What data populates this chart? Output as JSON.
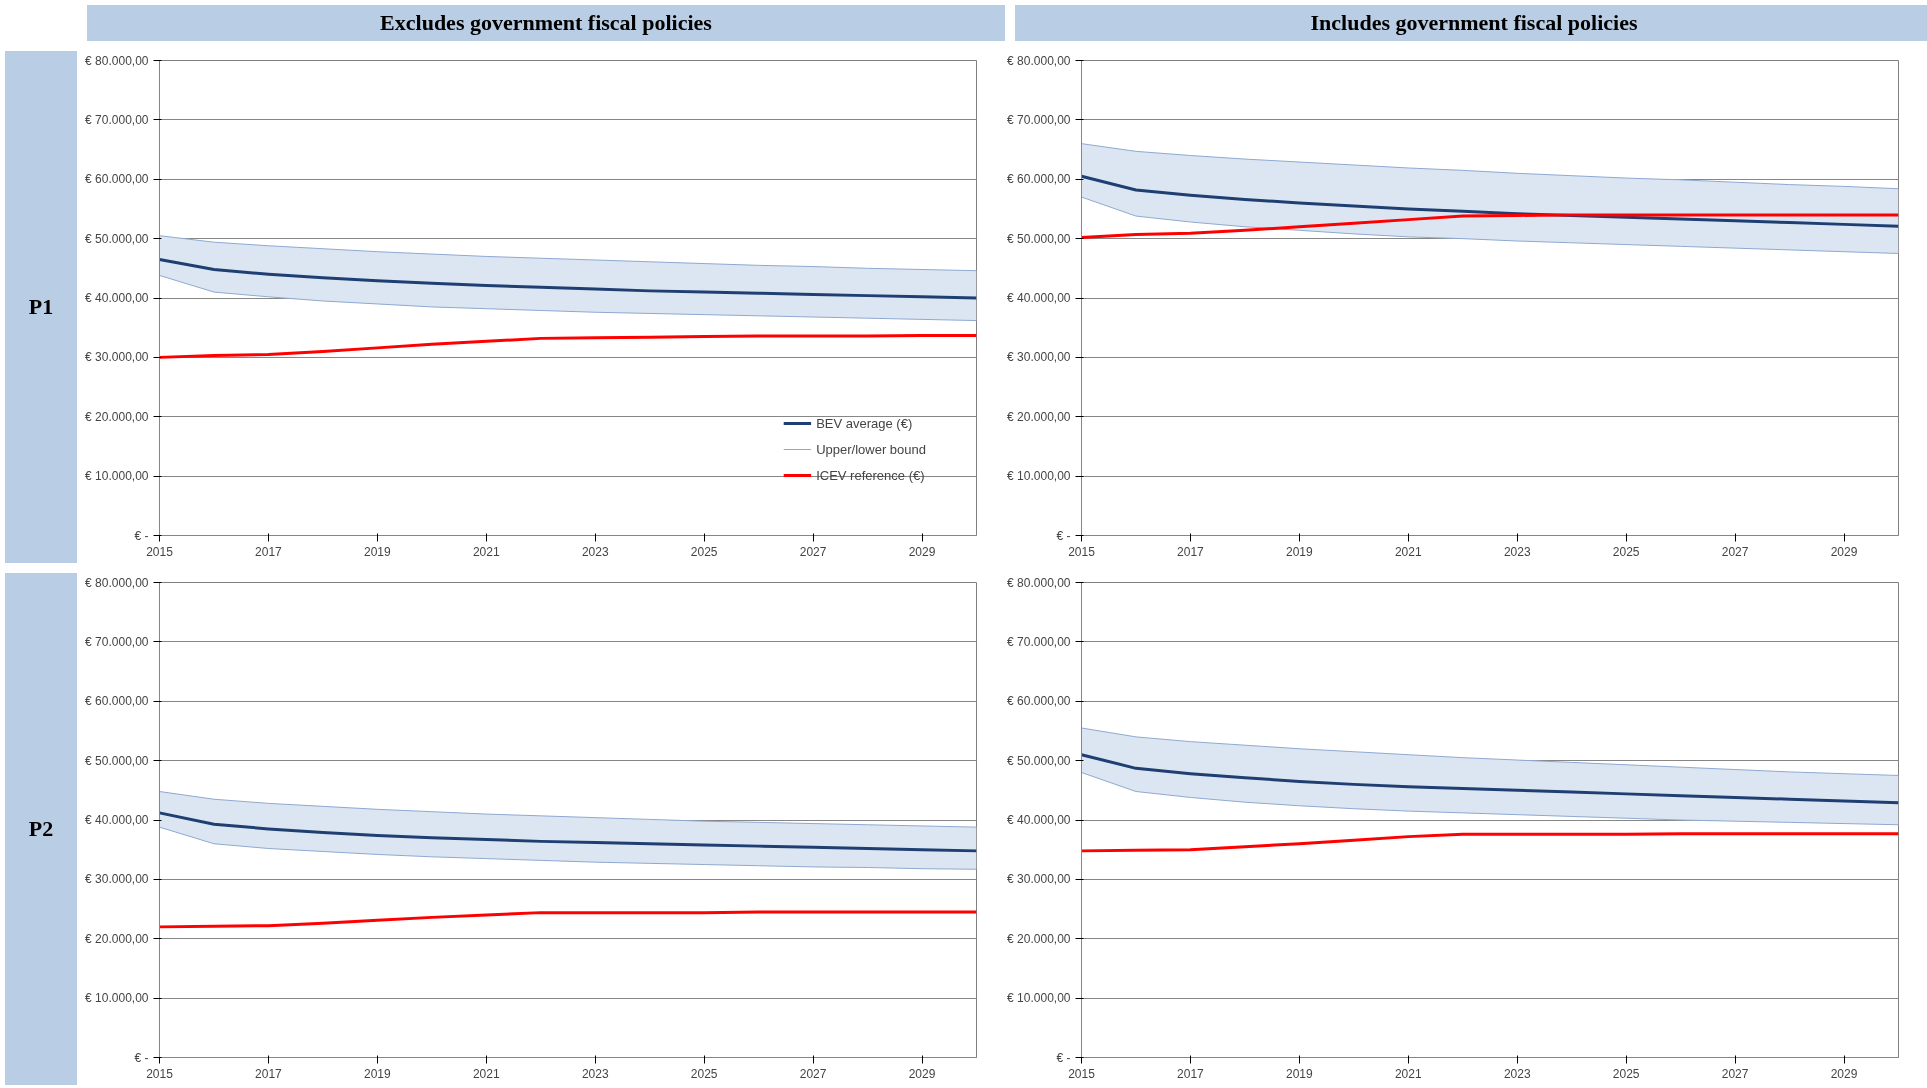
{
  "chart_data": [
    {
      "type": "line",
      "title": "Excludes government fiscal policies",
      "annotations": [
        "P1"
      ],
      "x": [
        2015,
        2016,
        2017,
        2018,
        2019,
        2020,
        2021,
        2022,
        2023,
        2024,
        2025,
        2026,
        2027,
        2028,
        2029,
        2030
      ],
      "xlim": [
        2015,
        2030
      ],
      "xticks": [
        2015,
        2017,
        2019,
        2021,
        2023,
        2025,
        2027,
        2029
      ],
      "ylim": [
        0,
        80000
      ],
      "yticks": [
        {
          "value": 0,
          "label": "€ -"
        },
        {
          "value": 10000,
          "label": "€ 10.000,00"
        },
        {
          "value": 20000,
          "label": "€ 20.000,00"
        },
        {
          "value": 30000,
          "label": "€ 30.000,00"
        },
        {
          "value": 40000,
          "label": "€ 40.000,00"
        },
        {
          "value": 50000,
          "label": "€ 50.000,00"
        },
        {
          "value": 60000,
          "label": "€ 60.000,00"
        },
        {
          "value": 70000,
          "label": "€ 70.000,00"
        },
        {
          "value": 80000,
          "label": "€ 80.000,00"
        }
      ],
      "grid": "y",
      "legend": "bottom right",
      "series": [
        {
          "name": "BEV average (€)",
          "color": "#1f3f73",
          "values": [
            46500,
            44800,
            44000,
            43400,
            42900,
            42500,
            42100,
            41800,
            41500,
            41200,
            41000,
            40800,
            40600,
            40400,
            40200,
            40000
          ],
          "lower": [
            43800,
            41000,
            40200,
            39500,
            39000,
            38500,
            38200,
            37900,
            37600,
            37400,
            37200,
            37000,
            36800,
            36600,
            36400,
            36200
          ],
          "upper": [
            50500,
            49400,
            48800,
            48300,
            47800,
            47400,
            47000,
            46700,
            46400,
            46100,
            45800,
            45500,
            45300,
            45000,
            44800,
            44600
          ]
        },
        {
          "name": "Upper/lower bound",
          "color": "#8ea9d0",
          "values": [
            50500,
            49400,
            48800,
            48300,
            47800,
            47400,
            47000,
            46700,
            46400,
            46100,
            45800,
            45500,
            45300,
            45000,
            44800,
            44600
          ]
        },
        {
          "color": "#8ea9d0",
          "values": [
            43800,
            41000,
            40200,
            39500,
            39000,
            38500,
            38200,
            37900,
            37600,
            37400,
            37200,
            37000,
            36800,
            36600,
            36400,
            36200
          ]
        },
        {
          "name": "ICEV reference (€)",
          "color": "#ff0000",
          "values": [
            30000,
            30300,
            30500,
            31000,
            31600,
            32200,
            32700,
            33200,
            33300,
            33400,
            33500,
            33600,
            33600,
            33600,
            33700,
            33700
          ]
        }
      ]
    },
    {
      "type": "line",
      "title": "Includes government fiscal policies",
      "x": [
        2015,
        2016,
        2017,
        2018,
        2019,
        2020,
        2021,
        2022,
        2023,
        2024,
        2025,
        2026,
        2027,
        2028,
        2029,
        2030
      ],
      "xlim": [
        2015,
        2030
      ],
      "xticks": [
        2015,
        2017,
        2019,
        2021,
        2023,
        2025,
        2027,
        2029
      ],
      "ylim": [
        0,
        80000
      ],
      "yticks": [
        {
          "value": 0,
          "label": "€ -"
        },
        {
          "value": 10000,
          "label": "€ 10.000,00"
        },
        {
          "value": 20000,
          "label": "€ 20.000,00"
        },
        {
          "value": 30000,
          "label": "€ 30.000,00"
        },
        {
          "value": 40000,
          "label": "€ 40.000,00"
        },
        {
          "value": 50000,
          "label": "€ 50.000,00"
        },
        {
          "value": 60000,
          "label": "€ 60.000,00"
        },
        {
          "value": 70000,
          "label": "€ 70.000,00"
        },
        {
          "value": 80000,
          "label": "€ 80.000,00"
        }
      ],
      "grid": "y",
      "series": [
        {
          "color": "#1f3f73",
          "values": [
            60500,
            58200,
            57300,
            56600,
            56000,
            55500,
            55000,
            54600,
            54200,
            53900,
            53600,
            53300,
            53000,
            52700,
            52400,
            52100
          ],
          "lower": [
            57000,
            53800,
            52800,
            52000,
            51400,
            50800,
            50300,
            50000,
            49600,
            49300,
            49000,
            48700,
            48400,
            48100,
            47800,
            47500
          ],
          "upper": [
            66000,
            64700,
            64000,
            63400,
            62900,
            62400,
            61900,
            61500,
            61000,
            60600,
            60200,
            59900,
            59500,
            59100,
            58800,
            58400
          ]
        },
        {
          "color": "#8ea9d0",
          "values": [
            66000,
            64700,
            64000,
            63400,
            62900,
            62400,
            61900,
            61500,
            61000,
            60600,
            60200,
            59900,
            59500,
            59100,
            58800,
            58400
          ]
        },
        {
          "color": "#8ea9d0",
          "values": [
            57000,
            53800,
            52800,
            52000,
            51400,
            50800,
            50300,
            50000,
            49600,
            49300,
            49000,
            48700,
            48400,
            48100,
            47800,
            47500
          ]
        },
        {
          "color": "#ff0000",
          "values": [
            50200,
            50700,
            50900,
            51400,
            52000,
            52600,
            53200,
            53800,
            53900,
            54000,
            54000,
            54000,
            54000,
            54000,
            54000,
            54000
          ]
        }
      ]
    },
    {
      "type": "line",
      "annotations": [
        "P2"
      ],
      "x": [
        2015,
        2016,
        2017,
        2018,
        2019,
        2020,
        2021,
        2022,
        2023,
        2024,
        2025,
        2026,
        2027,
        2028,
        2029,
        2030
      ],
      "xlim": [
        2015,
        2030
      ],
      "xticks": [
        2015,
        2017,
        2019,
        2021,
        2023,
        2025,
        2027,
        2029
      ],
      "ylim": [
        0,
        80000
      ],
      "yticks": [
        {
          "value": 0,
          "label": "€ -"
        },
        {
          "value": 10000,
          "label": "€ 10.000,00"
        },
        {
          "value": 20000,
          "label": "€ 20.000,00"
        },
        {
          "value": 30000,
          "label": "€ 30.000,00"
        },
        {
          "value": 40000,
          "label": "€ 40.000,00"
        },
        {
          "value": 50000,
          "label": "€ 50.000,00"
        },
        {
          "value": 60000,
          "label": "€ 60.000,00"
        },
        {
          "value": 70000,
          "label": "€ 70.000,00"
        },
        {
          "value": 80000,
          "label": "€ 80.000,00"
        }
      ],
      "grid": "y",
      "series": [
        {
          "color": "#1f3f73",
          "values": [
            41200,
            39300,
            38500,
            37900,
            37400,
            37000,
            36700,
            36400,
            36200,
            36000,
            35800,
            35600,
            35400,
            35200,
            35000,
            34800
          ],
          "lower": [
            38800,
            36000,
            35200,
            34700,
            34200,
            33800,
            33500,
            33200,
            32900,
            32700,
            32500,
            32300,
            32100,
            32000,
            31800,
            31700
          ],
          "upper": [
            44800,
            43500,
            42800,
            42300,
            41800,
            41400,
            41000,
            40700,
            40400,
            40100,
            39800,
            39600,
            39400,
            39200,
            39000,
            38800
          ]
        },
        {
          "color": "#8ea9d0",
          "values": [
            44800,
            43500,
            42800,
            42300,
            41800,
            41400,
            41000,
            40700,
            40400,
            40100,
            39800,
            39600,
            39400,
            39200,
            39000,
            38800
          ]
        },
        {
          "color": "#8ea9d0",
          "values": [
            38800,
            36000,
            35200,
            34700,
            34200,
            33800,
            33500,
            33200,
            32900,
            32700,
            32500,
            32300,
            32100,
            32000,
            31800,
            31700
          ]
        },
        {
          "color": "#ff0000",
          "values": [
            22000,
            22100,
            22200,
            22600,
            23100,
            23600,
            24000,
            24400,
            24400,
            24400,
            24400,
            24500,
            24500,
            24500,
            24500,
            24500
          ]
        }
      ]
    },
    {
      "type": "line",
      "x": [
        2015,
        2016,
        2017,
        2018,
        2019,
        2020,
        2021,
        2022,
        2023,
        2024,
        2025,
        2026,
        2027,
        2028,
        2029,
        2030
      ],
      "xlim": [
        2015,
        2030
      ],
      "xticks": [
        2015,
        2017,
        2019,
        2021,
        2023,
        2025,
        2027,
        2029
      ],
      "ylim": [
        0,
        80000
      ],
      "yticks": [
        {
          "value": 0,
          "label": "€ -"
        },
        {
          "value": 10000,
          "label": "€ 10.000,00"
        },
        {
          "value": 20000,
          "label": "€ 20.000,00"
        },
        {
          "value": 30000,
          "label": "€ 30.000,00"
        },
        {
          "value": 40000,
          "label": "€ 40.000,00"
        },
        {
          "value": 50000,
          "label": "€ 50.000,00"
        },
        {
          "value": 60000,
          "label": "€ 60.000,00"
        },
        {
          "value": 70000,
          "label": "€ 70.000,00"
        },
        {
          "value": 80000,
          "label": "€ 80.000,00"
        }
      ],
      "grid": "y",
      "series": [
        {
          "color": "#1f3f73",
          "values": [
            51000,
            48700,
            47800,
            47100,
            46500,
            46000,
            45600,
            45300,
            45000,
            44700,
            44400,
            44100,
            43800,
            43500,
            43200,
            42900
          ],
          "lower": [
            48000,
            44800,
            43800,
            43000,
            42400,
            41900,
            41500,
            41200,
            40900,
            40600,
            40300,
            40000,
            39800,
            39600,
            39400,
            39200
          ],
          "upper": [
            55500,
            54000,
            53200,
            52600,
            52000,
            51500,
            51000,
            50500,
            50100,
            49700,
            49300,
            48900,
            48500,
            48100,
            47800,
            47500
          ]
        },
        {
          "color": "#8ea9d0",
          "values": [
            55500,
            54000,
            53200,
            52600,
            52000,
            51500,
            51000,
            50500,
            50100,
            49700,
            49300,
            48900,
            48500,
            48100,
            47800,
            47500
          ]
        },
        {
          "color": "#8ea9d0",
          "values": [
            48000,
            44800,
            43800,
            43000,
            42400,
            41900,
            41500,
            41200,
            40900,
            40600,
            40300,
            40000,
            39800,
            39600,
            39400,
            39200
          ]
        },
        {
          "color": "#ff0000",
          "values": [
            34800,
            34900,
            35000,
            35500,
            36000,
            36600,
            37200,
            37600,
            37600,
            37600,
            37600,
            37700,
            37700,
            37700,
            37700,
            37700
          ]
        }
      ]
    }
  ]
}
